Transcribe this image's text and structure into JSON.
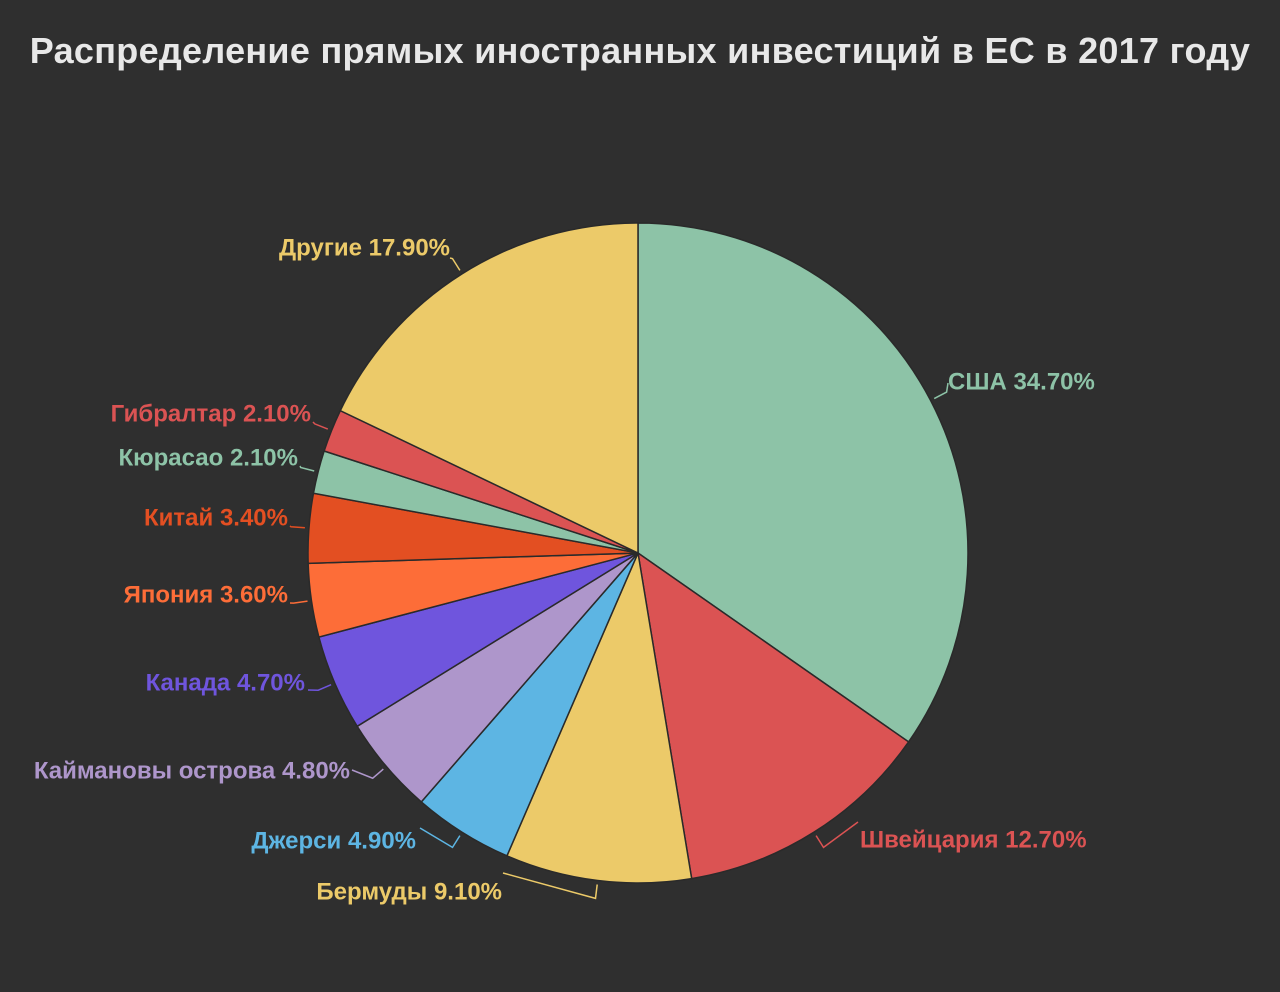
{
  "chart_data": {
    "type": "pie",
    "title": "Распределение прямых иностранных инвестиций в ЕС в 2017 году",
    "slices": [
      {
        "label": "США",
        "value": 34.7,
        "display": "США 34.70%",
        "color": "#8dc3a7"
      },
      {
        "label": "Швейцария",
        "value": 12.7,
        "display": "Швейцария 12.70%",
        "color": "#db5353"
      },
      {
        "label": "Бермуды",
        "value": 9.1,
        "display": "Бермуды 9.10%",
        "color": "#ecca69"
      },
      {
        "label": "Джерси",
        "value": 4.9,
        "display": "Джерси 4.90%",
        "color": "#5db5e3"
      },
      {
        "label": "Каймановы острова",
        "value": 4.8,
        "display": "Каймановы острова 4.80%",
        "color": "#ae96cb"
      },
      {
        "label": "Канада",
        "value": 4.7,
        "display": "Канада 4.70%",
        "color": "#6f55dd"
      },
      {
        "label": "Япония",
        "value": 3.6,
        "display": "Япония 3.60%",
        "color": "#fd6d38"
      },
      {
        "label": "Китай",
        "value": 3.4,
        "display": "Китай 3.40%",
        "color": "#e34f22"
      },
      {
        "label": "Кюрасао",
        "value": 2.1,
        "display": "Кюрасао 2.10%",
        "color": "#8dc3a7"
      },
      {
        "label": "Гибралтар",
        "value": 2.1,
        "display": "Гибралтар 2.10%",
        "color": "#db5353"
      },
      {
        "label": "Другие",
        "value": 17.9,
        "display": "Другие 17.90%",
        "color": "#ecca69"
      }
    ]
  }
}
